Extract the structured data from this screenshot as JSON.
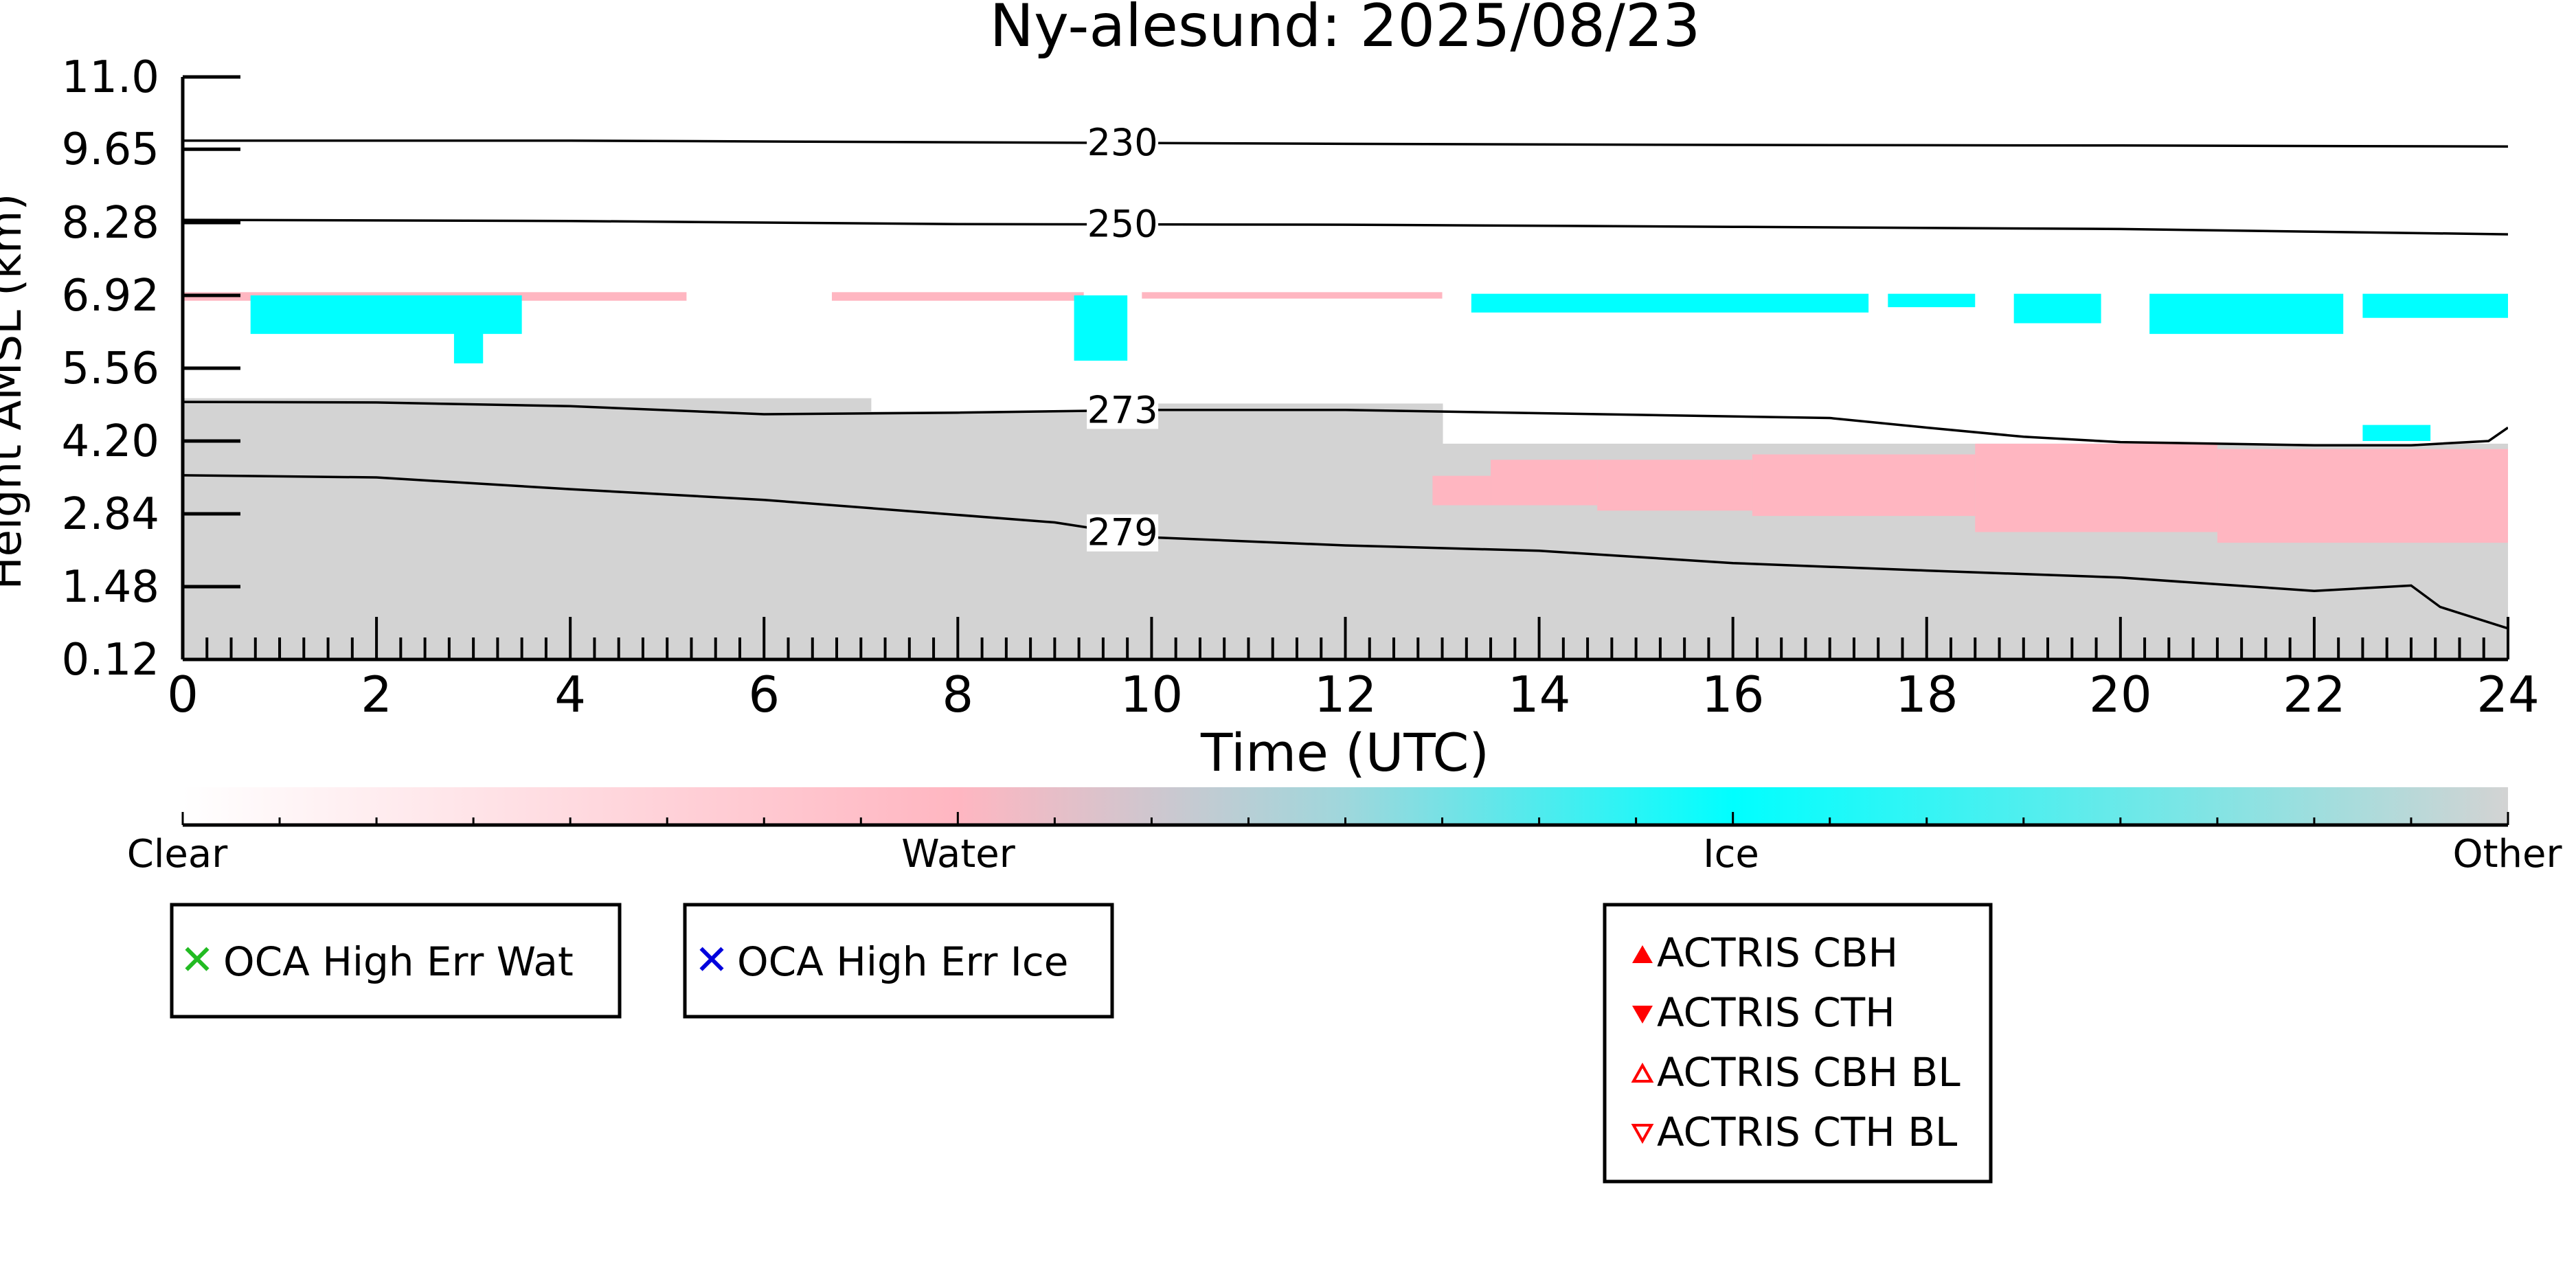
{
  "colors": {
    "clear": "#ffffff",
    "water": "#ffb6c1",
    "ice": "#00ffff",
    "other": "#d3d3d3",
    "contour": "#000000",
    "oca_wat": "#22bb22",
    "oca_ice": "#0000dd",
    "actris": "#ff0000"
  },
  "chart_data": {
    "type": "heatmap",
    "title": "Ny-alesund: 2025/08/23",
    "xlabel": "Time (UTC)",
    "ylabel": "Height AMSL (km)",
    "xlim": [
      0,
      24
    ],
    "ylim": [
      0.12,
      11.0
    ],
    "x_ticks": [
      0,
      2,
      4,
      6,
      8,
      10,
      12,
      14,
      16,
      18,
      20,
      22,
      24
    ],
    "y_ticks": [
      0.12,
      1.48,
      2.84,
      4.2,
      5.56,
      6.92,
      8.28,
      9.65,
      11.0
    ],
    "y_tick_labels": [
      "0.12",
      "1.48",
      "2.84",
      "4.20",
      "5.56",
      "6.92",
      "8.28",
      "9.65",
      "11.0"
    ],
    "classes": [
      "Clear",
      "Water",
      "Ice",
      "Other"
    ],
    "contours": [
      {
        "label": "230",
        "label_x": 9.7,
        "points": [
          [
            0,
            9.81
          ],
          [
            4,
            9.81
          ],
          [
            8,
            9.78
          ],
          [
            12,
            9.75
          ],
          [
            16,
            9.73
          ],
          [
            20,
            9.72
          ],
          [
            24,
            9.7
          ]
        ]
      },
      {
        "label": "250",
        "label_x": 9.7,
        "points": [
          [
            0,
            8.33
          ],
          [
            4,
            8.31
          ],
          [
            8,
            8.25
          ],
          [
            12,
            8.24
          ],
          [
            16,
            8.2
          ],
          [
            20,
            8.16
          ],
          [
            24,
            8.06
          ]
        ]
      },
      {
        "label": "273",
        "label_x": 9.7,
        "points": [
          [
            0,
            4.93
          ],
          [
            2,
            4.92
          ],
          [
            4,
            4.85
          ],
          [
            6,
            4.7
          ],
          [
            8,
            4.73
          ],
          [
            10,
            4.78
          ],
          [
            12,
            4.78
          ],
          [
            14,
            4.72
          ],
          [
            17,
            4.63
          ],
          [
            18,
            4.45
          ],
          [
            19,
            4.28
          ],
          [
            20,
            4.18
          ],
          [
            22,
            4.12
          ],
          [
            23,
            4.12
          ],
          [
            23.8,
            4.2
          ],
          [
            24,
            4.45
          ]
        ]
      },
      {
        "label": "279",
        "label_x": 9.7,
        "points": [
          [
            0,
            3.56
          ],
          [
            2,
            3.52
          ],
          [
            4,
            3.3
          ],
          [
            6,
            3.1
          ],
          [
            8,
            2.82
          ],
          [
            9,
            2.68
          ],
          [
            10,
            2.4
          ],
          [
            12,
            2.25
          ],
          [
            14,
            2.15
          ],
          [
            16,
            1.92
          ],
          [
            18,
            1.78
          ],
          [
            20,
            1.65
          ],
          [
            22,
            1.4
          ],
          [
            23,
            1.5
          ],
          [
            23.3,
            1.1
          ],
          [
            24,
            0.7
          ]
        ]
      }
    ],
    "other_regions": [
      {
        "t0": 0,
        "t1": 7.1,
        "top": 5.0
      },
      {
        "t0": 7.1,
        "t1": 9.6,
        "top": 4.75
      },
      {
        "t0": 9.6,
        "t1": 13.0,
        "top": 4.9
      },
      {
        "t0": 13.0,
        "t1": 24,
        "top": 4.15
      }
    ],
    "water_regions": [
      {
        "t0": 12.9,
        "t1": 13.5,
        "bottom": 3.0,
        "top": 3.55
      },
      {
        "t0": 13.5,
        "t1": 14.6,
        "bottom": 3.0,
        "top": 3.85
      },
      {
        "t0": 14.6,
        "t1": 16.2,
        "bottom": 2.9,
        "top": 3.85
      },
      {
        "t0": 16.2,
        "t1": 18.5,
        "bottom": 2.8,
        "top": 3.95
      },
      {
        "t0": 18.5,
        "t1": 21.0,
        "bottom": 2.5,
        "top": 4.15
      },
      {
        "t0": 21.0,
        "t1": 24,
        "bottom": 2.3,
        "top": 4.05
      }
    ],
    "water_layers": [
      {
        "t0": 0,
        "t1": 5.2,
        "bottom": 6.82,
        "top": 6.98
      },
      {
        "t0": 6.7,
        "t1": 9.3,
        "bottom": 6.82,
        "top": 6.98
      },
      {
        "t0": 9.9,
        "t1": 13.0,
        "bottom": 6.86,
        "top": 6.98
      }
    ],
    "ice_regions": [
      {
        "t0": 0.7,
        "t1": 3.5,
        "bottom": 6.2,
        "top": 6.92
      },
      {
        "t0": 2.8,
        "t1": 3.1,
        "bottom": 5.65,
        "top": 6.5
      },
      {
        "t0": 9.2,
        "t1": 9.75,
        "bottom": 5.7,
        "top": 6.92
      },
      {
        "t0": 13.3,
        "t1": 17.4,
        "bottom": 6.6,
        "top": 6.95
      },
      {
        "t0": 17.6,
        "t1": 18.5,
        "bottom": 6.7,
        "top": 6.95
      },
      {
        "t0": 18.9,
        "t1": 19.8,
        "bottom": 6.4,
        "top": 6.95
      },
      {
        "t0": 20.3,
        "t1": 22.3,
        "bottom": 6.2,
        "top": 6.95
      },
      {
        "t0": 22.5,
        "t1": 24,
        "bottom": 6.5,
        "top": 6.95
      },
      {
        "t0": 22.5,
        "t1": 23.2,
        "bottom": 4.2,
        "top": 4.5
      }
    ],
    "colorbar": {
      "ticks": [
        "Clear",
        "Water",
        "Ice",
        "Other"
      ],
      "positions": [
        0,
        0.333,
        0.667,
        1.0
      ]
    },
    "legends": [
      {
        "items": [
          {
            "marker": "x",
            "color": "oca_wat",
            "label": "OCA High Err Wat"
          }
        ]
      },
      {
        "items": [
          {
            "marker": "x",
            "color": "oca_ice",
            "label": "OCA High Err Ice"
          }
        ]
      },
      {
        "items": [
          {
            "marker": "tri-up-filled",
            "color": "actris",
            "label": "ACTRIS CBH"
          },
          {
            "marker": "tri-down-filled",
            "color": "actris",
            "label": "ACTRIS CTH"
          },
          {
            "marker": "tri-up-open",
            "color": "actris",
            "label": "ACTRIS CBH BL"
          },
          {
            "marker": "tri-down-open",
            "color": "actris",
            "label": "ACTRIS CTH BL"
          }
        ]
      }
    ]
  }
}
